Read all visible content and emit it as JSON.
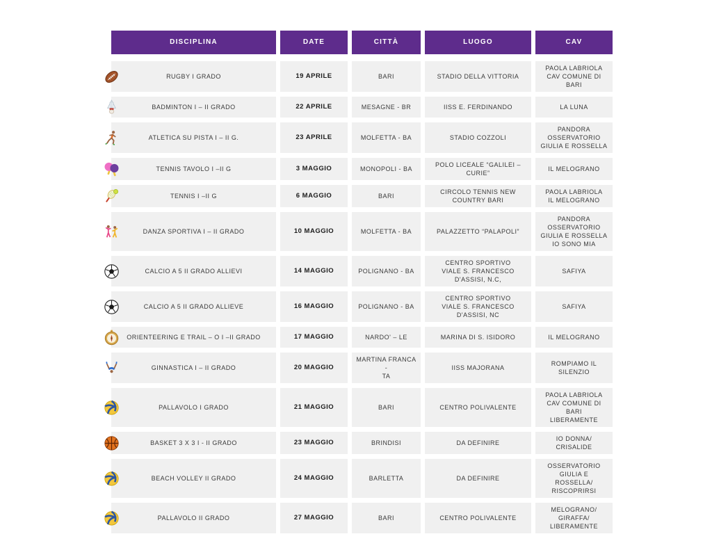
{
  "colors": {
    "header_bg": "#5e2c8c",
    "header_text": "#ffffff",
    "cell_bg": "#f0f0f0",
    "cell_text": "#3a3a3a",
    "date_text": "#1c1c1c",
    "page_bg": "#ffffff"
  },
  "table": {
    "headers": [
      "DISCIPLINA",
      "DATE",
      "CITTÀ",
      "LUOGO",
      "CAV"
    ],
    "rows": [
      {
        "icon": "rugby-ball",
        "disciplina": "RUGBY I GRADO",
        "date": "19 APRILE",
        "citta": "BARI",
        "luogo": "STADIO DELLA VITTORIA",
        "cav": "PAOLA LABRIOLA\nCAV COMUNE DI BARI"
      },
      {
        "icon": "badminton",
        "disciplina": "BADMINTON I – II GRADO",
        "date": "22 APRILE",
        "citta": "MESAGNE - BR",
        "luogo": "IISS E. FERDINANDO",
        "cav": "LA LUNA"
      },
      {
        "icon": "runner",
        "disciplina": "ATLETICA SU PISTA I – II G.",
        "date": "23 APRILE",
        "citta": "MOLFETTA - BA",
        "luogo": "STADIO COZZOLI",
        "cav": "PANDORA\nOSSERVATORIO\nGIULIA E ROSSELLA"
      },
      {
        "icon": "table-tennis",
        "disciplina": "TENNIS TAVOLO I –II G",
        "date": "3 MAGGIO",
        "citta": "MONOPOLI - BA",
        "luogo": "POLO LICEALE “GALILEI –\nCURIE”",
        "cav": "IL MELOGRANO"
      },
      {
        "icon": "tennis",
        "disciplina": "TENNIS I –II G",
        "date": "6 MAGGIO",
        "citta": "BARI",
        "luogo": "CIRCOLO TENNIS NEW\nCOUNTRY BARI",
        "cav": "PAOLA LABRIOLA\nIL MELOGRANO"
      },
      {
        "icon": "dancers",
        "disciplina": "DANZA SPORTIVA I – II GRADO",
        "date": "10 MAGGIO",
        "citta": "MOLFETTA - BA",
        "luogo": "PALAZZETTO “PALAPOLI”",
        "cav": "PANDORA\nOSSERVATORIO\nGIULIA E ROSSELLA\nIO SONO MIA"
      },
      {
        "icon": "soccer-ball",
        "disciplina": "CALCIO A 5 II GRADO ALLIEVI",
        "date": "14 MAGGIO",
        "citta": "POLIGNANO - BA",
        "luogo": "CENTRO SPORTIVO\nVIALE S. FRANCESCO\nD'ASSISI, N.C,",
        "cav": "SAFIYA"
      },
      {
        "icon": "soccer-ball",
        "disciplina": "CALCIO A 5 II GRADO ALLIEVE",
        "date": "16 MAGGIO",
        "citta": "POLIGNANO - BA",
        "luogo": "CENTRO SPORTIVO\nVIALE S. FRANCESCO\nD'ASSISI, NC",
        "cav": "SAFIYA"
      },
      {
        "icon": "compass",
        "disciplina": "ORIENTEERING E TRAIL – O I –II GRADO",
        "date": "17 MAGGIO",
        "citta": "NARDO' – LE",
        "luogo": "MARINA DI S. ISIDORO",
        "cav": "IL MELOGRANO"
      },
      {
        "icon": "gymnast",
        "disciplina": "GINNASTICA I – II GRADO",
        "date": "20 MAGGIO",
        "citta": "MARTINA FRANCA -\nTA",
        "luogo": "IISS MAJORANA",
        "cav": "ROMPIAMO IL\nSILENZIO"
      },
      {
        "icon": "volleyball",
        "disciplina": "PALLAVOLO I GRADO",
        "date": "21 MAGGIO",
        "citta": "BARI",
        "luogo": "CENTRO POLIVALENTE",
        "cav": "PAOLA LABRIOLA\nCAV COMUNE DI BARI\nLIBERAMENTE"
      },
      {
        "icon": "basketball",
        "disciplina": "BASKET 3 X 3 I - II GRADO",
        "date": "23 MAGGIO",
        "citta": "BRINDISI",
        "luogo": "DA DEFINIRE",
        "cav": "IO DONNA/\nCRISALIDE"
      },
      {
        "icon": "volleyball",
        "disciplina": "BEACH VOLLEY II GRADO",
        "date": "24 MAGGIO",
        "citta": "BARLETTA",
        "luogo": "DA DEFINIRE",
        "cav": "OSSERVATORIO\nGIULIA E ROSSELLA/\nRISCOPRIRSI"
      },
      {
        "icon": "volleyball",
        "disciplina": "PALLAVOLO II GRADO",
        "date": "27 MAGGIO",
        "citta": "BARI",
        "luogo": "CENTRO POLIVALENTE",
        "cav": "MELOGRANO/\nGIRAFFA/\nLIBERAMENTE"
      }
    ]
  }
}
